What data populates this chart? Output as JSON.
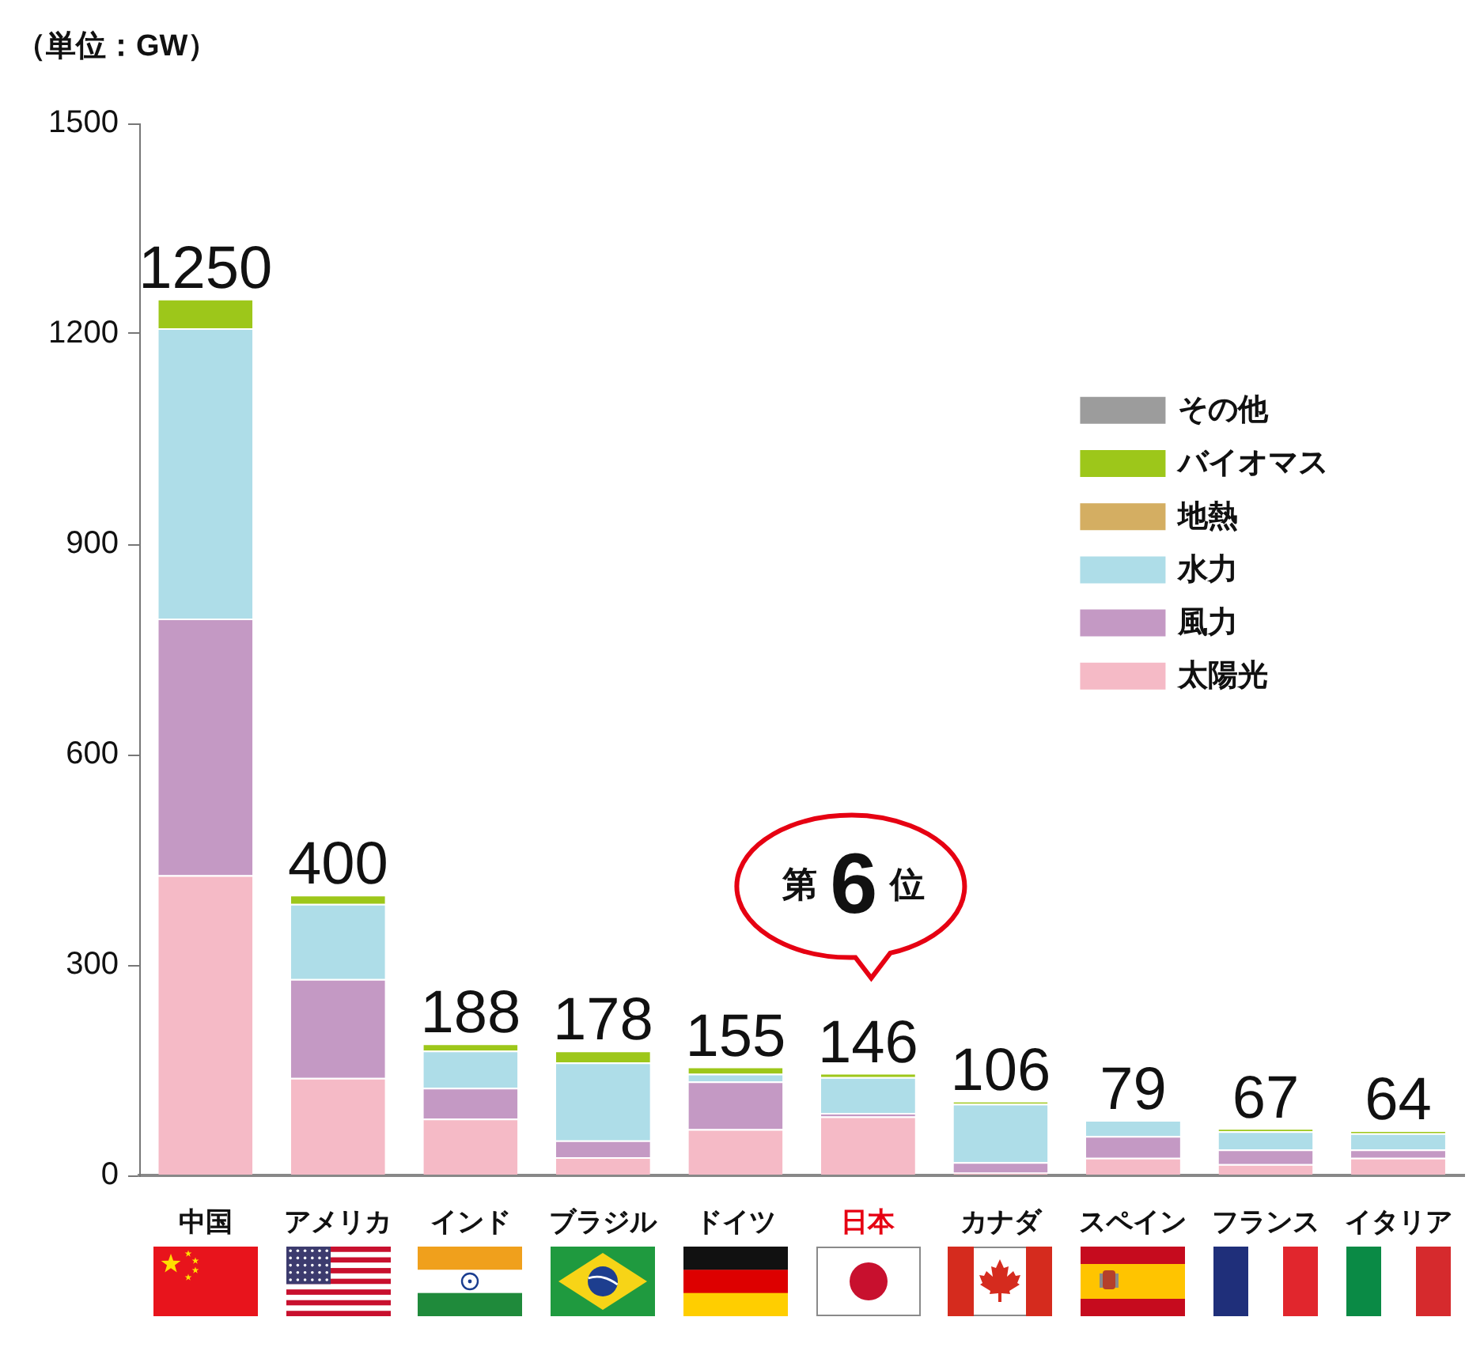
{
  "chart_data": {
    "type": "bar",
    "stacked": true,
    "ylabel": "（単位：GW）",
    "categories": [
      "中国",
      "アメリカ",
      "インド",
      "ブラジル",
      "ドイツ",
      "日本",
      "カナダ",
      "スペイン",
      "フランス",
      "イタリア"
    ],
    "series": [
      {
        "name": "太陽光",
        "color": "#f5bac6",
        "values": [
          428,
          139,
          81,
          26,
          66,
          84,
          4,
          25,
          16,
          25
        ]
      },
      {
        "name": "風力",
        "color": "#c499c4",
        "values": [
          366,
          141,
          44,
          24,
          68,
          5,
          15,
          31,
          21,
          12
        ]
      },
      {
        "name": "水力",
        "color": "#aedde8",
        "values": [
          414,
          107,
          53,
          111,
          11,
          51,
          83,
          23,
          26,
          23
        ]
      },
      {
        "name": "地熱",
        "color": "#d4ae62",
        "values": [
          0,
          0,
          0,
          0,
          0,
          0,
          0,
          0,
          0,
          0
        ]
      },
      {
        "name": "バイオマス",
        "color": "#9dc71a",
        "values": [
          42,
          13,
          10,
          17,
          10,
          6,
          4,
          0,
          4,
          4
        ]
      },
      {
        "name": "その他",
        "color": "#9c9c9c",
        "values": [
          0,
          0,
          0,
          0,
          0,
          0,
          0,
          0,
          0,
          0
        ]
      }
    ],
    "totals": [
      "1250",
      "400",
      "188",
      "178",
      "155",
      "146",
      "106",
      "79",
      "67",
      "64"
    ],
    "ylim": [
      0,
      1500
    ],
    "yticks": [
      0,
      300,
      600,
      900,
      1200,
      1500
    ],
    "legend": "right",
    "annotations": [
      {
        "text": "第6位",
        "x": "日本",
        "y": 146
      }
    ]
  }
}
